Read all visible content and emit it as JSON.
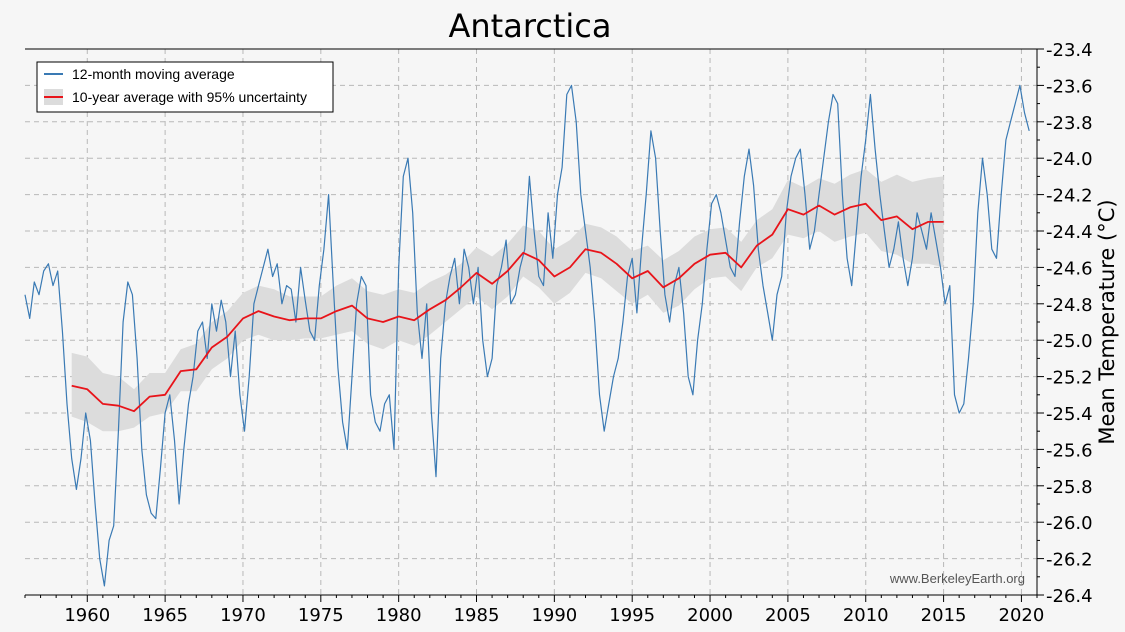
{
  "chart_data": {
    "type": "line",
    "title": "Antarctica",
    "ylabel": "Mean Temperature (°C)",
    "xlabel": "",
    "xlim": [
      1956,
      2021
    ],
    "ylim": [
      -26.4,
      -23.4
    ],
    "x_ticks": [
      1960,
      1965,
      1970,
      1975,
      1980,
      1985,
      1990,
      1995,
      2000,
      2005,
      2010,
      2015,
      2020
    ],
    "y_ticks": [
      -23.4,
      -23.6,
      -23.8,
      -24.0,
      -24.2,
      -24.4,
      -24.6,
      -24.8,
      -25.0,
      -25.2,
      -25.4,
      -25.6,
      -25.8,
      -26.0,
      -26.2,
      -26.4
    ],
    "y_tick_labels": [
      "-23.4",
      "-23.6",
      "-23.8",
      "-24.0",
      "-24.2",
      "-24.4",
      "-24.6",
      "-24.8",
      "-25.0",
      "-25.2",
      "-25.4",
      "-25.6",
      "-25.8",
      "-26.0",
      "-26.2",
      "-26.4"
    ],
    "grid": true,
    "legend_position": "top-left",
    "watermark": "www.BerkeleyEarth.org",
    "colors": {
      "moving": "#3a7ab4",
      "decadal": "#e8141a",
      "band": "#dcdcdc"
    },
    "series": [
      {
        "name": "12-month moving average",
        "style": "line",
        "x": [
          1956.0,
          1956.3,
          1956.6,
          1956.9,
          1957.2,
          1957.5,
          1957.8,
          1958.1,
          1958.4,
          1958.7,
          1959.0,
          1959.3,
          1959.6,
          1959.9,
          1960.2,
          1960.5,
          1960.8,
          1961.1,
          1961.4,
          1961.7,
          1962.0,
          1962.3,
          1962.6,
          1962.9,
          1963.2,
          1963.5,
          1963.8,
          1964.1,
          1964.4,
          1964.7,
          1965.0,
          1965.3,
          1965.6,
          1965.9,
          1966.2,
          1966.5,
          1966.8,
          1967.1,
          1967.4,
          1967.7,
          1968.0,
          1968.3,
          1968.6,
          1968.9,
          1969.2,
          1969.5,
          1969.8,
          1970.1,
          1970.4,
          1970.7,
          1971.0,
          1971.3,
          1971.6,
          1971.9,
          1972.2,
          1972.5,
          1972.8,
          1973.1,
          1973.4,
          1973.7,
          1974.0,
          1974.3,
          1974.6,
          1974.9,
          1975.2,
          1975.5,
          1975.8,
          1976.1,
          1976.4,
          1976.7,
          1977.0,
          1977.3,
          1977.6,
          1977.9,
          1978.2,
          1978.5,
          1978.8,
          1979.1,
          1979.4,
          1979.7,
          1980.0,
          1980.3,
          1980.6,
          1980.9,
          1981.2,
          1981.5,
          1981.8,
          1982.1,
          1982.4,
          1982.7,
          1983.0,
          1983.3,
          1983.6,
          1983.9,
          1984.2,
          1984.5,
          1984.8,
          1985.1,
          1985.4,
          1985.7,
          1986.0,
          1986.3,
          1986.6,
          1986.9,
          1987.2,
          1987.5,
          1987.8,
          1988.1,
          1988.4,
          1988.7,
          1989.0,
          1989.3,
          1989.6,
          1989.9,
          1990.2,
          1990.5,
          1990.8,
          1991.1,
          1991.4,
          1991.7,
          1992.0,
          1992.3,
          1992.6,
          1992.9,
          1993.2,
          1993.5,
          1993.8,
          1994.1,
          1994.4,
          1994.7,
          1995.0,
          1995.3,
          1995.6,
          1995.9,
          1996.2,
          1996.5,
          1996.8,
          1997.1,
          1997.4,
          1997.7,
          1998.0,
          1998.3,
          1998.6,
          1998.9,
          1999.2,
          1999.5,
          1999.8,
          2000.1,
          2000.4,
          2000.7,
          2001.0,
          2001.3,
          2001.6,
          2001.9,
          2002.2,
          2002.5,
          2002.8,
          2003.1,
          2003.4,
          2003.7,
          2004.0,
          2004.3,
          2004.6,
          2004.9,
          2005.2,
          2005.5,
          2005.8,
          2006.1,
          2006.4,
          2006.7,
          2007.0,
          2007.3,
          2007.6,
          2007.9,
          2008.2,
          2008.5,
          2008.8,
          2009.1,
          2009.4,
          2009.7,
          2010.0,
          2010.3,
          2010.6,
          2010.9,
          2011.2,
          2011.5,
          2011.8,
          2012.1,
          2012.4,
          2012.7,
          2013.0,
          2013.3,
          2013.6,
          2013.9,
          2014.2,
          2014.5,
          2014.8,
          2015.1,
          2015.4,
          2015.7,
          2016.0,
          2016.3,
          2016.6,
          2016.9,
          2017.2,
          2017.5,
          2017.8,
          2018.1,
          2018.4,
          2018.7,
          2019.0,
          2019.3,
          2019.6,
          2019.9,
          2020.2,
          2020.5
        ],
        "y": [
          -24.75,
          -24.88,
          -24.68,
          -24.75,
          -24.62,
          -24.58,
          -24.7,
          -24.62,
          -24.95,
          -25.35,
          -25.65,
          -25.82,
          -25.65,
          -25.4,
          -25.55,
          -25.9,
          -26.2,
          -26.35,
          -26.1,
          -26.02,
          -25.5,
          -24.9,
          -24.68,
          -24.75,
          -25.1,
          -25.6,
          -25.85,
          -25.95,
          -25.98,
          -25.7,
          -25.4,
          -25.3,
          -25.55,
          -25.9,
          -25.6,
          -25.35,
          -25.2,
          -24.95,
          -24.9,
          -25.1,
          -24.8,
          -24.95,
          -24.78,
          -24.9,
          -25.2,
          -24.95,
          -25.3,
          -25.5,
          -25.2,
          -24.8,
          -24.7,
          -24.6,
          -24.5,
          -24.65,
          -24.58,
          -24.8,
          -24.7,
          -24.72,
          -24.9,
          -24.6,
          -24.78,
          -24.95,
          -25.0,
          -24.7,
          -24.5,
          -24.2,
          -24.7,
          -25.15,
          -25.45,
          -25.6,
          -25.2,
          -24.8,
          -24.65,
          -24.7,
          -25.3,
          -25.45,
          -25.5,
          -25.35,
          -25.3,
          -25.6,
          -24.6,
          -24.1,
          -24.0,
          -24.3,
          -24.85,
          -25.1,
          -24.8,
          -25.4,
          -25.75,
          -25.1,
          -24.8,
          -24.65,
          -24.55,
          -24.8,
          -24.5,
          -24.6,
          -24.8,
          -24.6,
          -25.0,
          -25.2,
          -25.1,
          -24.7,
          -24.6,
          -24.45,
          -24.8,
          -24.75,
          -24.6,
          -24.5,
          -24.1,
          -24.4,
          -24.65,
          -24.7,
          -24.3,
          -24.55,
          -24.2,
          -24.05,
          -23.65,
          -23.6,
          -23.8,
          -24.2,
          -24.4,
          -24.6,
          -24.9,
          -25.3,
          -25.5,
          -25.35,
          -25.2,
          -25.1,
          -24.9,
          -24.65,
          -24.55,
          -24.85,
          -24.5,
          -24.2,
          -23.85,
          -24.0,
          -24.4,
          -24.75,
          -24.9,
          -24.7,
          -24.6,
          -24.85,
          -25.2,
          -25.3,
          -25.0,
          -24.8,
          -24.5,
          -24.25,
          -24.2,
          -24.3,
          -24.45,
          -24.6,
          -24.65,
          -24.35,
          -24.1,
          -23.95,
          -24.15,
          -24.5,
          -24.7,
          -24.85,
          -25.0,
          -24.75,
          -24.65,
          -24.3,
          -24.1,
          -24.0,
          -23.95,
          -24.2,
          -24.5,
          -24.4,
          -24.2,
          -24.0,
          -23.8,
          -23.65,
          -23.7,
          -24.2,
          -24.55,
          -24.7,
          -24.4,
          -24.1,
          -23.9,
          -23.65,
          -23.95,
          -24.2,
          -24.4,
          -24.6,
          -24.5,
          -24.35,
          -24.55,
          -24.7,
          -24.55,
          -24.3,
          -24.4,
          -24.5,
          -24.3,
          -24.45,
          -24.6,
          -24.8,
          -24.7,
          -25.3,
          -25.4,
          -25.35,
          -25.1,
          -24.8,
          -24.3,
          -24.0,
          -24.2,
          -24.5,
          -24.55,
          -24.2,
          -23.9,
          -23.8,
          -23.7,
          -23.6,
          -23.75,
          -23.85
        ]
      },
      {
        "name": "10-year average with 95% uncertainty",
        "style": "line-band",
        "x": [
          1959,
          1960,
          1961,
          1962,
          1963,
          1964,
          1965,
          1966,
          1967,
          1968,
          1969,
          1970,
          1971,
          1972,
          1973,
          1974,
          1975,
          1976,
          1977,
          1978,
          1979,
          1980,
          1981,
          1982,
          1983,
          1984,
          1985,
          1986,
          1987,
          1988,
          1989,
          1990,
          1991,
          1992,
          1993,
          1994,
          1995,
          1996,
          1997,
          1998,
          1999,
          2000,
          2001,
          2002,
          2003,
          2004,
          2005,
          2006,
          2007,
          2008,
          2009,
          2010,
          2011,
          2012,
          2013,
          2014,
          2015
        ],
        "y": [
          -25.25,
          -25.27,
          -25.35,
          -25.36,
          -25.39,
          -25.31,
          -25.3,
          -25.17,
          -25.16,
          -25.04,
          -24.98,
          -24.88,
          -24.84,
          -24.87,
          -24.89,
          -24.88,
          -24.88,
          -24.84,
          -24.81,
          -24.88,
          -24.9,
          -24.87,
          -24.89,
          -24.83,
          -24.78,
          -24.71,
          -24.63,
          -24.69,
          -24.62,
          -24.52,
          -24.56,
          -24.65,
          -24.6,
          -24.5,
          -24.52,
          -24.58,
          -24.66,
          -24.62,
          -24.71,
          -24.66,
          -24.58,
          -24.53,
          -24.52,
          -24.6,
          -24.48,
          -24.42,
          -24.28,
          -24.31,
          -24.26,
          -24.31,
          -24.27,
          -24.25,
          -24.34,
          -24.32,
          -24.39,
          -24.35,
          -24.35
        ],
        "lower": [
          -25.42,
          -25.45,
          -25.5,
          -25.5,
          -25.48,
          -25.42,
          -25.4,
          -25.28,
          -25.28,
          -25.16,
          -25.1,
          -25.0,
          -24.97,
          -25.0,
          -25.0,
          -24.99,
          -24.99,
          -24.97,
          -24.95,
          -25.02,
          -25.05,
          -25.0,
          -25.03,
          -24.97,
          -24.9,
          -24.83,
          -24.76,
          -24.83,
          -24.76,
          -24.65,
          -24.71,
          -24.8,
          -24.74,
          -24.63,
          -24.66,
          -24.73,
          -24.8,
          -24.75,
          -24.85,
          -24.81,
          -24.72,
          -24.66,
          -24.65,
          -24.73,
          -24.6,
          -24.55,
          -24.42,
          -24.44,
          -24.4,
          -24.46,
          -24.43,
          -24.41,
          -24.51,
          -24.53,
          -24.58,
          -24.58,
          -24.6
        ],
        "upper": [
          -25.07,
          -25.09,
          -25.18,
          -25.2,
          -25.27,
          -25.18,
          -25.18,
          -25.05,
          -25.02,
          -24.9,
          -24.84,
          -24.74,
          -24.7,
          -24.72,
          -24.76,
          -24.76,
          -24.76,
          -24.7,
          -24.66,
          -24.73,
          -24.75,
          -24.72,
          -24.74,
          -24.68,
          -24.64,
          -24.58,
          -24.49,
          -24.54,
          -24.47,
          -24.37,
          -24.4,
          -24.5,
          -24.45,
          -24.36,
          -24.38,
          -24.43,
          -24.51,
          -24.48,
          -24.56,
          -24.51,
          -24.43,
          -24.39,
          -24.38,
          -24.46,
          -24.34,
          -24.28,
          -24.12,
          -24.16,
          -24.11,
          -24.14,
          -24.09,
          -24.06,
          -24.13,
          -24.09,
          -24.13,
          -24.11,
          -24.1
        ]
      }
    ]
  }
}
